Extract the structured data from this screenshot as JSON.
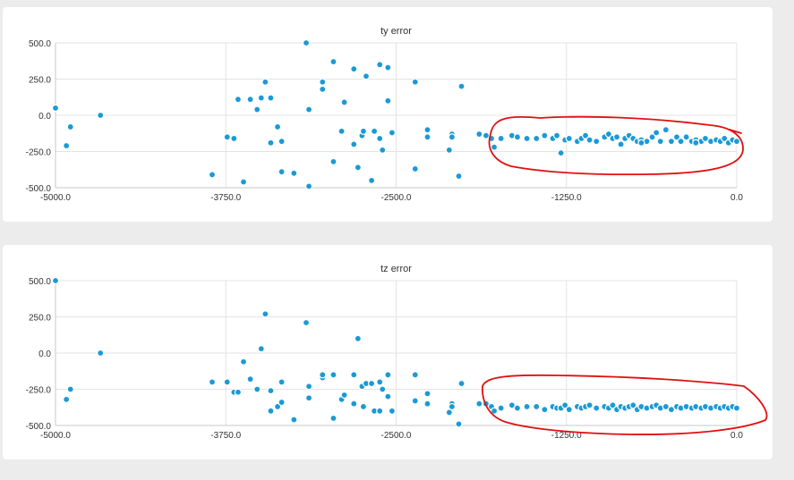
{
  "chart_data": [
    {
      "type": "scatter",
      "title": "ty error",
      "xlabel": "",
      "ylabel": "",
      "xlim": [
        -5000,
        0
      ],
      "ylim": [
        -500,
        500
      ],
      "x_ticks": [
        "-5000.0",
        "-3750.0",
        "-2500.0",
        "-1250.0",
        "0.0"
      ],
      "y_ticks": [
        "500.0",
        "250.0",
        "0.0",
        "-250.0",
        "-500.0"
      ],
      "grid": true,
      "marker_color": "#1a9ad6",
      "annotation": "red freehand loop around x from -1800 to 0",
      "annotation_color": "#e01010",
      "points": [
        [
          -5000,
          50
        ],
        [
          -4920,
          -210
        ],
        [
          -4890,
          -80
        ],
        [
          -4670,
          0
        ],
        [
          -3850,
          -410
        ],
        [
          -3740,
          -150
        ],
        [
          -3690,
          -160
        ],
        [
          -3660,
          110
        ],
        [
          -3620,
          -460
        ],
        [
          -3570,
          110
        ],
        [
          -3520,
          40
        ],
        [
          -3490,
          120
        ],
        [
          -3460,
          230
        ],
        [
          -3420,
          120
        ],
        [
          -3420,
          -190
        ],
        [
          -3370,
          -80
        ],
        [
          -3340,
          -180
        ],
        [
          -3340,
          -390
        ],
        [
          -3250,
          -400
        ],
        [
          -3160,
          500
        ],
        [
          -3140,
          40
        ],
        [
          -3140,
          -490
        ],
        [
          -3040,
          230
        ],
        [
          -3040,
          180
        ],
        [
          -2960,
          -320
        ],
        [
          -2960,
          370
        ],
        [
          -2900,
          -110
        ],
        [
          -2880,
          90
        ],
        [
          -2810,
          -200
        ],
        [
          -2810,
          320
        ],
        [
          -2780,
          -360
        ],
        [
          -2750,
          -140
        ],
        [
          -2740,
          -110
        ],
        [
          -2720,
          270
        ],
        [
          -2680,
          -450
        ],
        [
          -2660,
          -110
        ],
        [
          -2620,
          350
        ],
        [
          -2620,
          -160
        ],
        [
          -2600,
          -240
        ],
        [
          -2560,
          330
        ],
        [
          -2560,
          100
        ],
        [
          -2530,
          -120
        ],
        [
          -2360,
          230
        ],
        [
          -2360,
          -370
        ],
        [
          -2270,
          -100
        ],
        [
          -2270,
          -150
        ],
        [
          -2110,
          -240
        ],
        [
          -2090,
          -130
        ],
        [
          -2090,
          -150
        ],
        [
          -2020,
          200
        ],
        [
          -2040,
          -420
        ],
        [
          -1890,
          -130
        ],
        [
          -1840,
          -140
        ],
        [
          -1800,
          -160
        ],
        [
          -1780,
          -220
        ],
        [
          -1730,
          -160
        ],
        [
          -1650,
          -140
        ],
        [
          -1610,
          -150
        ],
        [
          -1540,
          -160
        ],
        [
          -1470,
          -160
        ],
        [
          -1410,
          -140
        ],
        [
          -1350,
          -160
        ],
        [
          -1320,
          -140
        ],
        [
          -1290,
          -260
        ],
        [
          -1260,
          -170
        ],
        [
          -1230,
          -160
        ],
        [
          -1170,
          -180
        ],
        [
          -1140,
          -160
        ],
        [
          -1110,
          -140
        ],
        [
          -1080,
          -170
        ],
        [
          -1030,
          -180
        ],
        [
          -970,
          -150
        ],
        [
          -940,
          -130
        ],
        [
          -910,
          -160
        ],
        [
          -880,
          -150
        ],
        [
          -850,
          -200
        ],
        [
          -820,
          -160
        ],
        [
          -790,
          -140
        ],
        [
          -760,
          -160
        ],
        [
          -730,
          -180
        ],
        [
          -700,
          -170
        ],
        [
          -660,
          -180
        ],
        [
          -620,
          -150
        ],
        [
          -590,
          -120
        ],
        [
          -560,
          -180
        ],
        [
          -520,
          -100
        ],
        [
          -480,
          -180
        ],
        [
          -440,
          -150
        ],
        [
          -410,
          -180
        ],
        [
          -370,
          -150
        ],
        [
          -330,
          -180
        ],
        [
          -300,
          -170
        ],
        [
          -260,
          -180
        ],
        [
          -230,
          -160
        ],
        [
          -190,
          -180
        ],
        [
          -150,
          -170
        ],
        [
          -120,
          -180
        ],
        [
          -90,
          -160
        ],
        [
          -60,
          -190
        ],
        [
          -30,
          -170
        ],
        [
          0,
          -180
        ],
        [
          -300,
          -190
        ],
        [
          -700,
          -190
        ]
      ]
    },
    {
      "type": "scatter",
      "title": "tz error",
      "xlabel": "",
      "ylabel": "",
      "xlim": [
        -5000,
        0
      ],
      "ylim": [
        -500,
        500
      ],
      "x_ticks": [
        "-5000.0",
        "-3750.0",
        "-2500.0",
        "-1250.0",
        "0.0"
      ],
      "y_ticks": [
        "500.0",
        "250.0",
        "0.0",
        "-250.0",
        "-500.0"
      ],
      "grid": true,
      "marker_color": "#1a9ad6",
      "annotation": "red freehand loop around x from -1850 to 0",
      "annotation_color": "#e01010",
      "points": [
        [
          -5000,
          500
        ],
        [
          -4920,
          -320
        ],
        [
          -4890,
          -250
        ],
        [
          -4670,
          0
        ],
        [
          -3850,
          -200
        ],
        [
          -3740,
          -200
        ],
        [
          -3690,
          -270
        ],
        [
          -3660,
          -270
        ],
        [
          -3620,
          -60
        ],
        [
          -3570,
          -180
        ],
        [
          -3520,
          -250
        ],
        [
          -3490,
          30
        ],
        [
          -3460,
          270
        ],
        [
          -3420,
          -260
        ],
        [
          -3420,
          -400
        ],
        [
          -3370,
          -370
        ],
        [
          -3340,
          -200
        ],
        [
          -3340,
          -340
        ],
        [
          -3250,
          -460
        ],
        [
          -3160,
          210
        ],
        [
          -3140,
          -230
        ],
        [
          -3140,
          -310
        ],
        [
          -3040,
          -170
        ],
        [
          -3040,
          -150
        ],
        [
          -2960,
          -150
        ],
        [
          -2960,
          -450
        ],
        [
          -2900,
          -320
        ],
        [
          -2880,
          -290
        ],
        [
          -2810,
          -350
        ],
        [
          -2810,
          -150
        ],
        [
          -2780,
          100
        ],
        [
          -2750,
          -230
        ],
        [
          -2740,
          -370
        ],
        [
          -2720,
          -210
        ],
        [
          -2680,
          -210
        ],
        [
          -2660,
          -400
        ],
        [
          -2620,
          -400
        ],
        [
          -2620,
          -200
        ],
        [
          -2600,
          -250
        ],
        [
          -2560,
          -300
        ],
        [
          -2560,
          -150
        ],
        [
          -2530,
          -400
        ],
        [
          -2360,
          -330
        ],
        [
          -2360,
          -150
        ],
        [
          -2270,
          -350
        ],
        [
          -2270,
          -280
        ],
        [
          -2110,
          -410
        ],
        [
          -2090,
          -350
        ],
        [
          -2090,
          -370
        ],
        [
          -2020,
          -210
        ],
        [
          -2040,
          -490
        ],
        [
          -1890,
          -350
        ],
        [
          -1840,
          -350
        ],
        [
          -1800,
          -370
        ],
        [
          -1780,
          -400
        ],
        [
          -1730,
          -380
        ],
        [
          -1650,
          -360
        ],
        [
          -1610,
          -380
        ],
        [
          -1540,
          -370
        ],
        [
          -1470,
          -370
        ],
        [
          -1410,
          -390
        ],
        [
          -1350,
          -370
        ],
        [
          -1320,
          -380
        ],
        [
          -1290,
          -380
        ],
        [
          -1260,
          -360
        ],
        [
          -1230,
          -390
        ],
        [
          -1170,
          -370
        ],
        [
          -1140,
          -380
        ],
        [
          -1110,
          -370
        ],
        [
          -1080,
          -360
        ],
        [
          -1030,
          -380
        ],
        [
          -970,
          -370
        ],
        [
          -940,
          -380
        ],
        [
          -910,
          -360
        ],
        [
          -880,
          -390
        ],
        [
          -850,
          -370
        ],
        [
          -820,
          -380
        ],
        [
          -790,
          -370
        ],
        [
          -760,
          -360
        ],
        [
          -730,
          -390
        ],
        [
          -700,
          -370
        ],
        [
          -660,
          -380
        ],
        [
          -620,
          -370
        ],
        [
          -590,
          -360
        ],
        [
          -560,
          -380
        ],
        [
          -520,
          -370
        ],
        [
          -480,
          -390
        ],
        [
          -440,
          -370
        ],
        [
          -410,
          -380
        ],
        [
          -370,
          -370
        ],
        [
          -330,
          -380
        ],
        [
          -300,
          -370
        ],
        [
          -260,
          -380
        ],
        [
          -230,
          -370
        ],
        [
          -190,
          -380
        ],
        [
          -150,
          -370
        ],
        [
          -120,
          -380
        ],
        [
          -90,
          -370
        ],
        [
          -60,
          -380
        ],
        [
          -30,
          -370
        ],
        [
          0,
          -380
        ]
      ]
    }
  ]
}
